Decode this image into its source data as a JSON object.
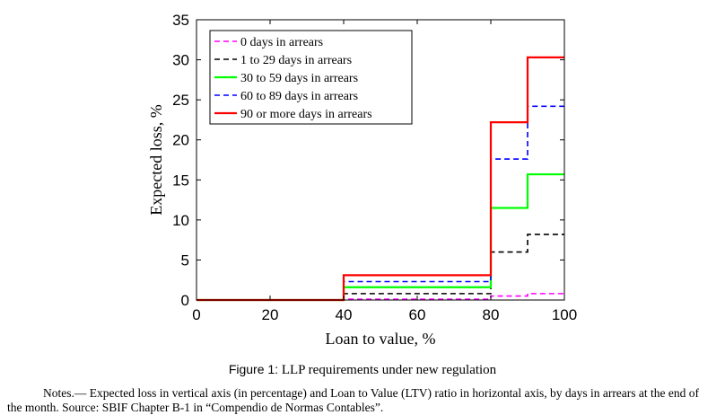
{
  "chart_data": {
    "type": "line",
    "xlabel": "Loan to value, %",
    "ylabel": "Expected loss, %",
    "xlim": [
      0,
      100
    ],
    "ylim": [
      0,
      35
    ],
    "xticks": [
      0,
      20,
      40,
      60,
      80,
      100
    ],
    "yticks": [
      0,
      5,
      10,
      15,
      20,
      25,
      30,
      35
    ],
    "legend_position": "top-left",
    "grid": false,
    "step": true,
    "series": [
      {
        "name": "0 days in arrears",
        "color": "#ff00ff",
        "dash": "dashed",
        "x": [
          0,
          40,
          80,
          90,
          100
        ],
        "y": [
          0,
          0.1,
          0.5,
          0.8,
          0.8
        ]
      },
      {
        "name": "1 to 29 days in arrears",
        "color": "#000000",
        "dash": "dashed",
        "x": [
          0,
          40,
          80,
          90,
          100
        ],
        "y": [
          0,
          0.8,
          6.0,
          8.2,
          8.2
        ]
      },
      {
        "name": "30 to 59 days in arrears",
        "color": "#00ff00",
        "dash": "solid",
        "x": [
          0,
          40,
          80,
          90,
          100
        ],
        "y": [
          0,
          1.6,
          11.5,
          15.7,
          15.7
        ]
      },
      {
        "name": "60 to 89 days in arrears",
        "color": "#0000ff",
        "dash": "dashed",
        "x": [
          0,
          40,
          80,
          90,
          100
        ],
        "y": [
          0,
          2.3,
          17.6,
          24.2,
          24.2
        ]
      },
      {
        "name": "90 or more days in arrears",
        "color": "#ff0000",
        "dash": "solid",
        "x": [
          0,
          40,
          80,
          90,
          100
        ],
        "y": [
          0,
          3.1,
          22.2,
          30.3,
          30.3
        ]
      }
    ]
  },
  "caption": {
    "label": "Figure 1:",
    "text": "LLP requirements under new regulation"
  },
  "notes": "Notes.— Expected loss in vertical axis (in percentage) and Loan to Value (LTV) ratio in horizontal axis, by days in arrears at the end of the month. Source: SBIF Chapter B-1 in “Compendio de Normas Contables”."
}
